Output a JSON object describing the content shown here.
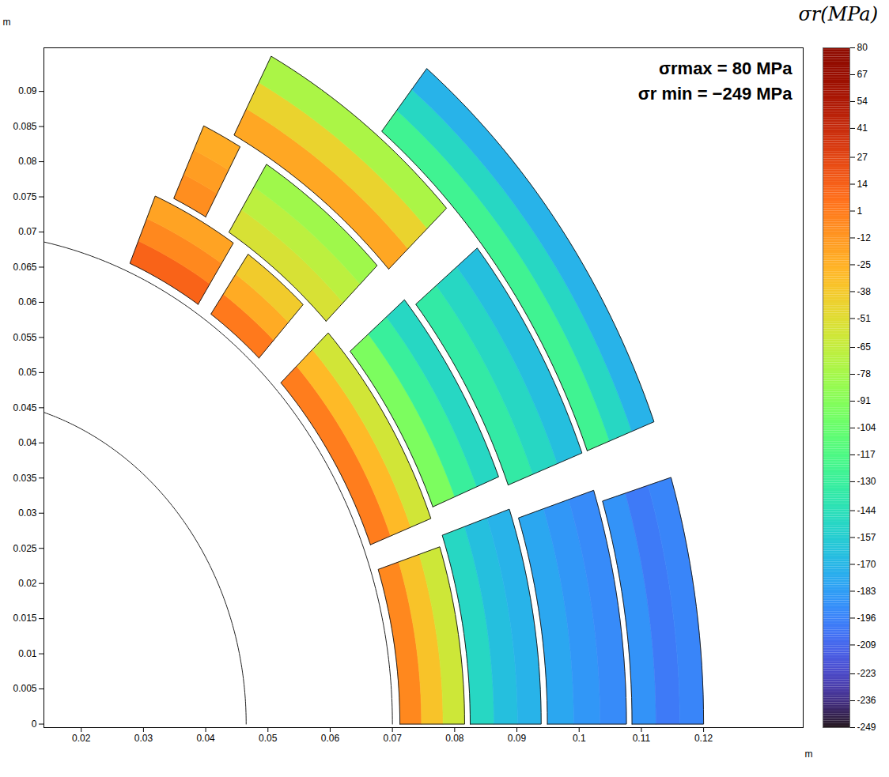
{
  "chart_data": {
    "type": "contour",
    "title": "σr(MPa)",
    "annotations": [
      "σrmax = 80 MPa",
      "σr min = −249 MPa"
    ],
    "xlabel": "m",
    "ylabel": "m",
    "xlim": [
      0.014,
      0.136
    ],
    "ylim": [
      -0.0005,
      0.0962
    ],
    "xticks": [
      0.02,
      0.03,
      0.04,
      0.05,
      0.06,
      0.07,
      0.08,
      0.09,
      0.1,
      0.11,
      0.12
    ],
    "yticks": [
      0,
      0.005,
      0.01,
      0.015,
      0.02,
      0.025,
      0.03,
      0.035,
      0.04,
      0.045,
      0.05,
      0.055,
      0.06,
      0.065,
      0.07,
      0.075,
      0.08,
      0.085,
      0.09
    ],
    "outline_radii": [
      0.0465,
      0.07
    ],
    "blocks": [
      {
        "r": [
          0.0712,
          0.0816
        ],
        "angle": [
          0,
          18
        ],
        "values": [
          -5,
          -35,
          -60
        ]
      },
      {
        "r": [
          0.0712,
          0.0816
        ],
        "angle": [
          21,
          43
        ],
        "values": [
          0,
          -30,
          -58
        ]
      },
      {
        "r": [
          0.0712,
          0.0816
        ],
        "angle": [
          47,
          55
        ],
        "values": [
          2,
          -22,
          -40
        ]
      },
      {
        "r": [
          0.0712,
          0.0816
        ],
        "angle": [
          57,
          67
        ],
        "values": [
          12,
          -5,
          -18
        ]
      },
      {
        "r": [
          0.0825,
          0.0939
        ],
        "angle": [
          0,
          19
        ],
        "values": [
          -150,
          -165,
          -172
        ]
      },
      {
        "r": [
          0.0825,
          0.0939
        ],
        "angle": [
          22,
          40
        ],
        "values": [
          -95,
          -130,
          -150
        ]
      },
      {
        "r": [
          0.0825,
          0.0939
        ],
        "angle": [
          44,
          58
        ],
        "values": [
          -55,
          -68,
          -80
        ]
      },
      {
        "r": [
          0.0825,
          0.0939
        ],
        "angle": [
          61,
          65
        ],
        "values": [
          -8,
          -15,
          -22
        ]
      },
      {
        "r": [
          0.0949,
          0.1076
        ],
        "angle": [
          0,
          18
        ],
        "values": [
          -178,
          -186,
          -192
        ]
      },
      {
        "r": [
          0.0949,
          0.1076
        ],
        "angle": [
          21,
          39
        ],
        "values": [
          -135,
          -150,
          -165
        ]
      },
      {
        "r": [
          0.0949,
          0.1076
        ],
        "angle": [
          43,
          62
        ],
        "values": [
          -20,
          -45,
          -75
        ]
      },
      {
        "r": [
          0.1085,
          0.12
        ],
        "angle": [
          0,
          17
        ],
        "values": [
          -188,
          -200,
          -195
        ]
      },
      {
        "r": [
          0.1085,
          0.12
        ],
        "angle": [
          21,
          51
        ],
        "values": [
          -125,
          -150,
          -172
        ]
      }
    ],
    "color": "turbo",
    "color_lim": [
      -249,
      80
    ],
    "color_ticks": [
      80,
      67,
      54,
      41,
      27,
      14,
      1,
      -12,
      -25,
      -38,
      -51,
      -65,
      -78,
      -91,
      -104,
      -117,
      -130,
      -144,
      -157,
      -170,
      -183,
      -196,
      -209,
      -223,
      -236,
      -249
    ]
  }
}
